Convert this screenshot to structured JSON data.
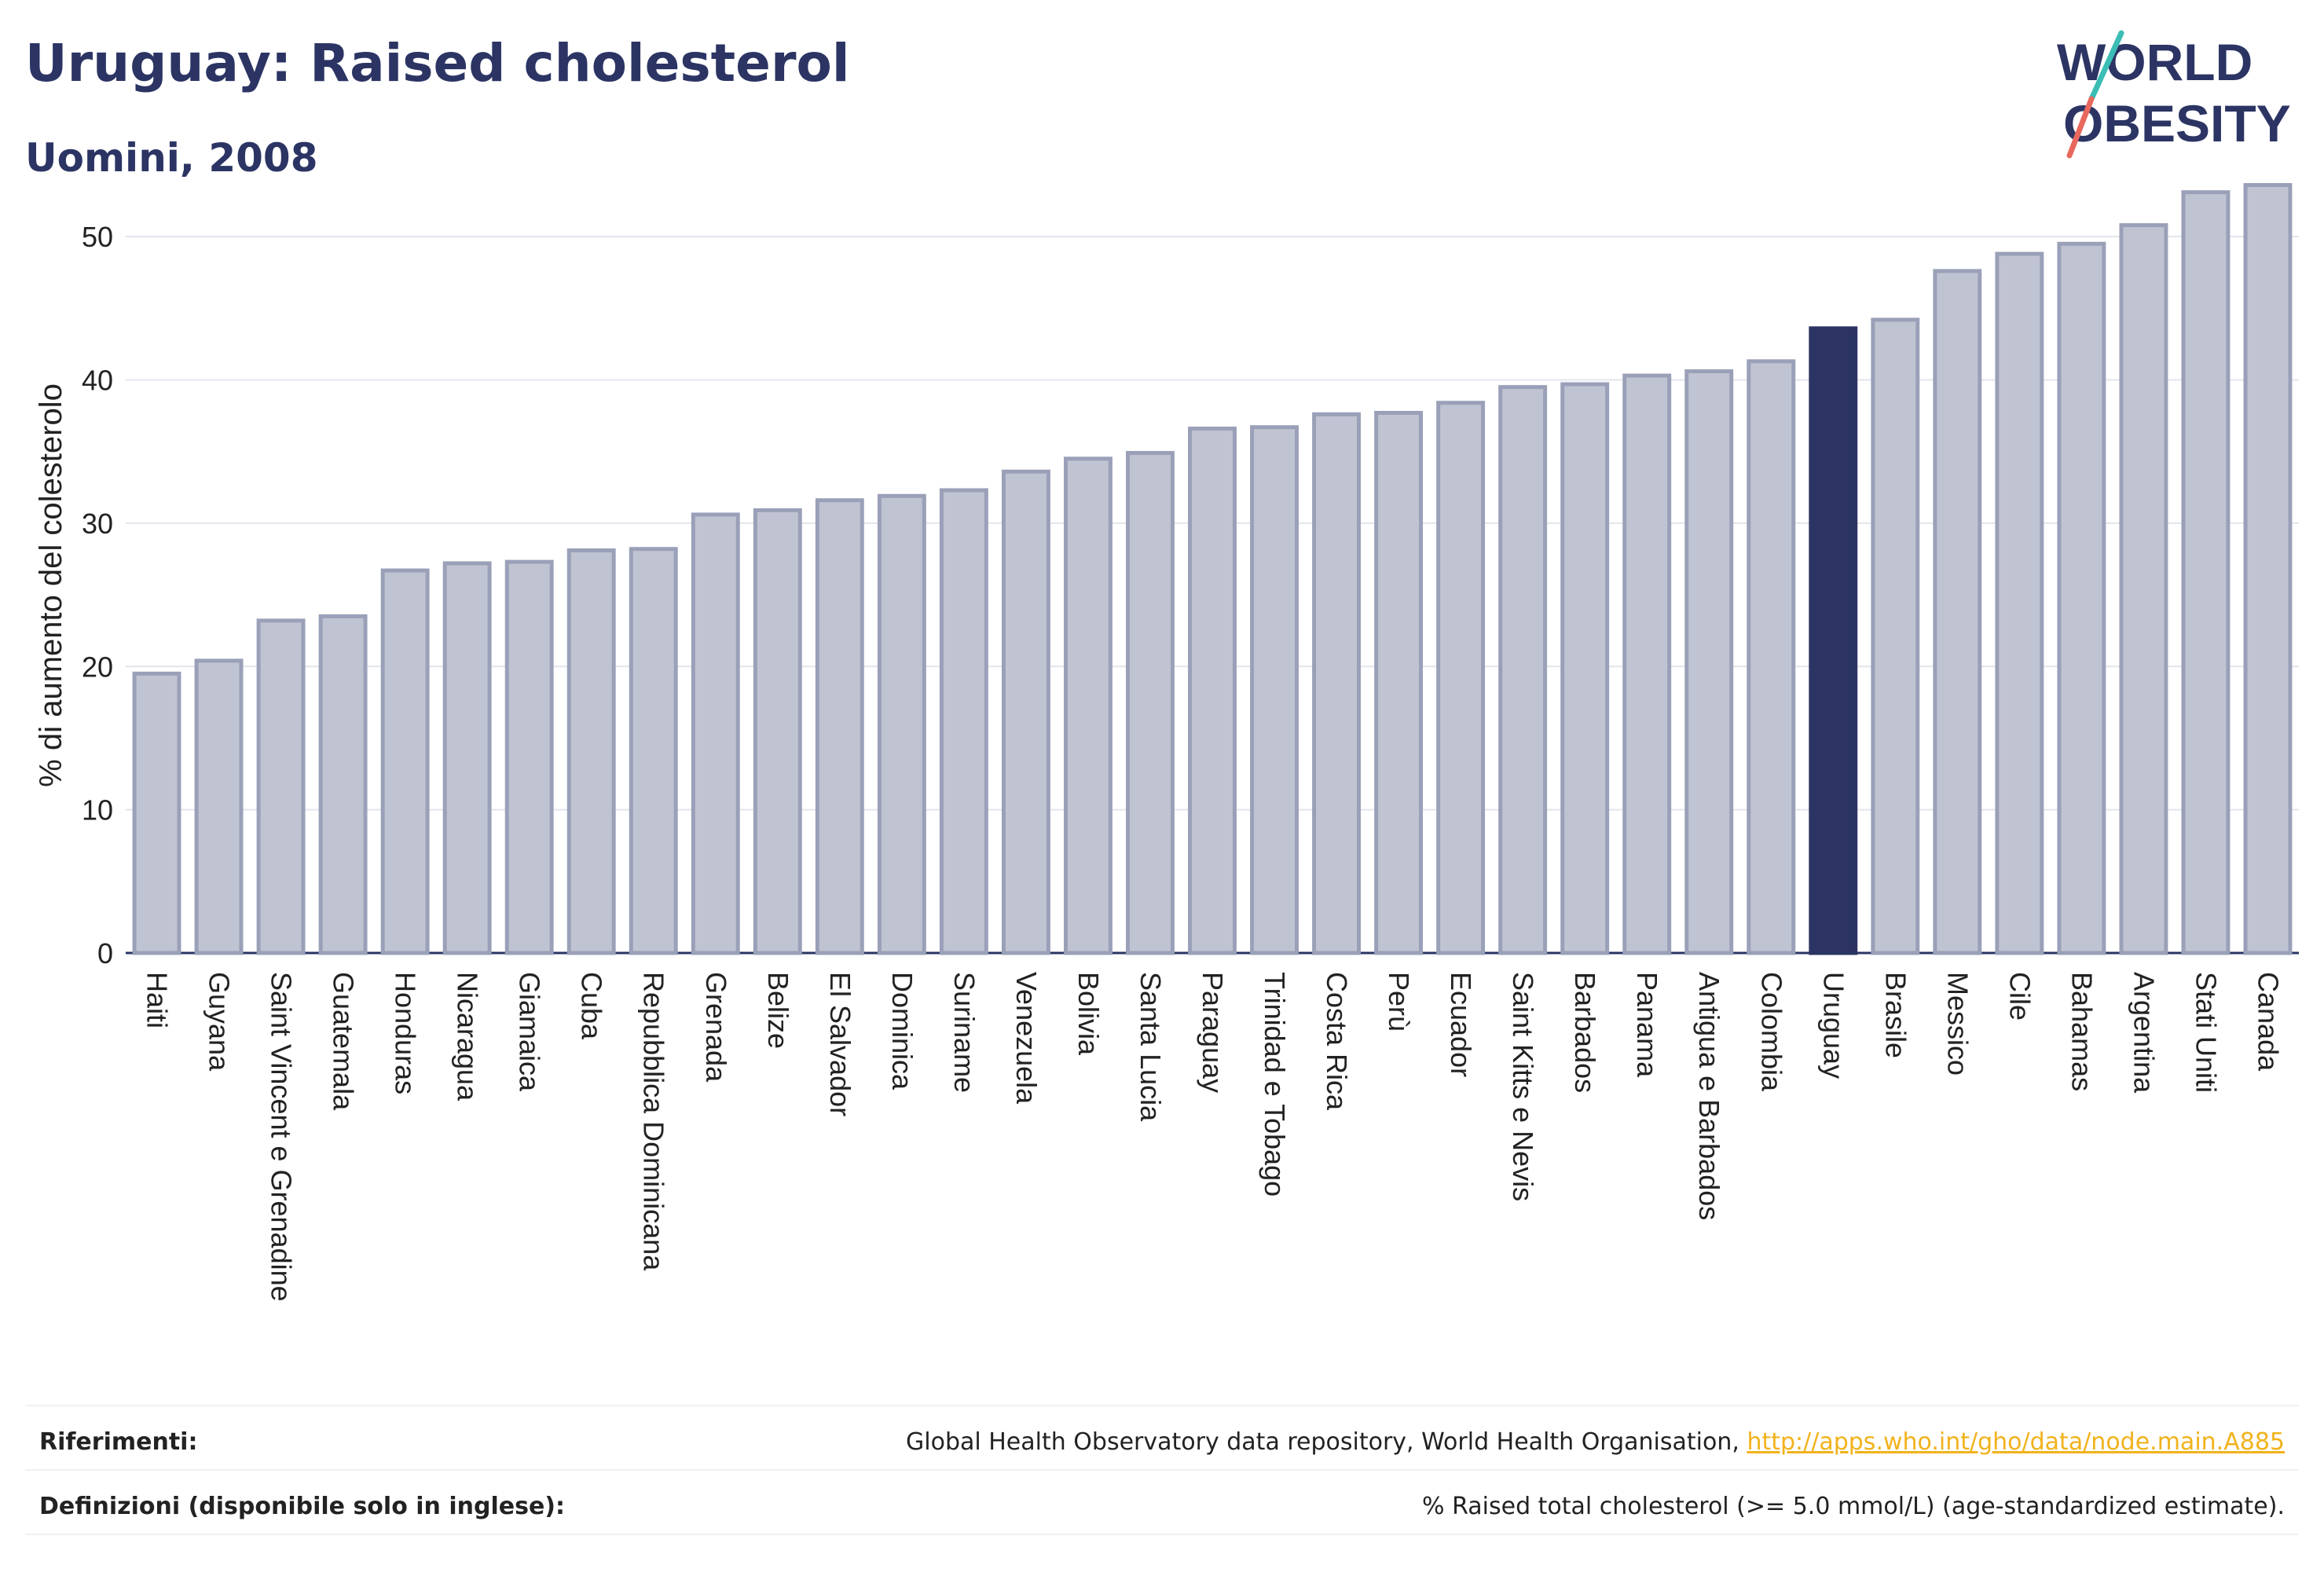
{
  "header": {
    "title": "Uruguay: Raised cholesterol",
    "subtitle": "Uomini, 2008"
  },
  "logo": {
    "line1": "WORLD",
    "line2": "OBESITY"
  },
  "chart_data": {
    "type": "bar",
    "title": "Uruguay: Raised cholesterol",
    "subtitle": "Uomini, 2008",
    "ylabel": "% di aumento del colesterolo",
    "xlabel": "",
    "ylim": [
      0,
      55
    ],
    "yticks": [
      0,
      10,
      20,
      30,
      40,
      50
    ],
    "grid": true,
    "highlight": "Uruguay",
    "colors": {
      "bar": "#c0c4d2",
      "bar_edge": "#9aa0b8",
      "highlight": "#2b3463"
    },
    "categories": [
      "Haiti",
      "Guyana",
      "Saint Vincent e Grenadine",
      "Guatemala",
      "Honduras",
      "Nicaragua",
      "Giamaica",
      "Cuba",
      "Repubblica Dominicana",
      "Grenada",
      "Belize",
      "El Salvador",
      "Dominica",
      "Suriname",
      "Venezuela",
      "Bolivia",
      "Santa Lucia",
      "Paraguay",
      "Trinidad e Tobago",
      "Costa Rica",
      "Perù",
      "Ecuador",
      "Saint Kitts e Nevis",
      "Barbados",
      "Panama",
      "Antigua e Barbados",
      "Colombia",
      "Uruguay",
      "Brasile",
      "Messico",
      "Cile",
      "Bahamas",
      "Argentina",
      "Stati Uniti",
      "Canada"
    ],
    "values": [
      19.5,
      20.4,
      23.2,
      23.5,
      26.7,
      27.2,
      27.3,
      28.1,
      28.2,
      30.6,
      30.9,
      31.6,
      31.9,
      32.3,
      33.6,
      34.5,
      34.9,
      36.6,
      36.7,
      37.6,
      37.7,
      38.4,
      39.5,
      39.7,
      40.3,
      40.6,
      41.3,
      43.6,
      44.2,
      47.6,
      48.8,
      49.5,
      50.8,
      53.1,
      53.6
    ]
  },
  "references": {
    "label": "Riferimenti:",
    "text": "Global Health Observatory data repository, World Health Organisation, ",
    "link": "http://apps.who.int/gho/data/node.main.A885"
  },
  "definitions": {
    "label": "Definizioni (disponibile solo in inglese):",
    "text": "% Raised total cholesterol (>= 5.0 mmol/L) (age-standardized estimate)."
  }
}
